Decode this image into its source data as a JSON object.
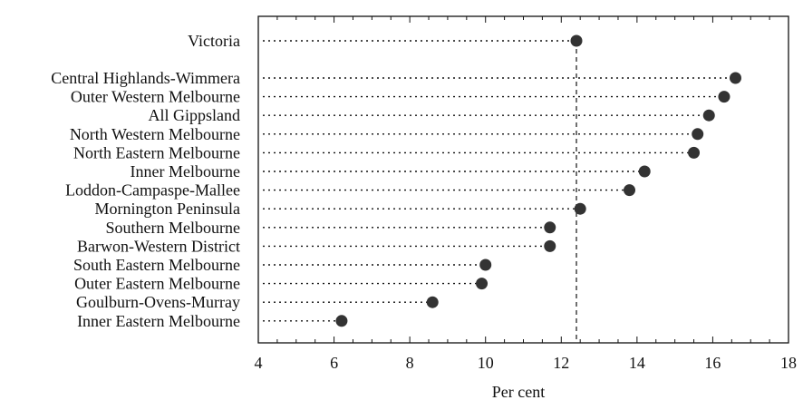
{
  "chart_data": {
    "type": "scatter",
    "title": "",
    "xlabel": "Per cent",
    "ylabel": "",
    "xlim": [
      4,
      18
    ],
    "xticks": [
      "4",
      "6",
      "8",
      "10",
      "12",
      "14",
      "16",
      "18"
    ],
    "grid": false,
    "legend": "none",
    "reference": {
      "label": "Victoria",
      "value": 12.4
    },
    "categories": [
      "Central Highlands-Wimmera",
      "Outer Western Melbourne",
      "All Gippsland",
      "North Western Melbourne",
      "North Eastern Melbourne",
      "Inner Melbourne",
      "Loddon-Campaspe-Mallee",
      "Mornington Peninsula",
      "Southern Melbourne",
      "Barwon-Western District",
      "South Eastern Melbourne",
      "Outer Eastern Melbourne",
      "Goulburn-Ovens-Murray",
      "Inner Eastern Melbourne"
    ],
    "values": [
      16.6,
      16.3,
      15.9,
      15.6,
      15.5,
      14.2,
      13.8,
      12.5,
      11.7,
      11.7,
      10.0,
      9.9,
      8.6,
      6.2
    ],
    "colors": {
      "marker": "#333333",
      "line": "#111111"
    }
  }
}
